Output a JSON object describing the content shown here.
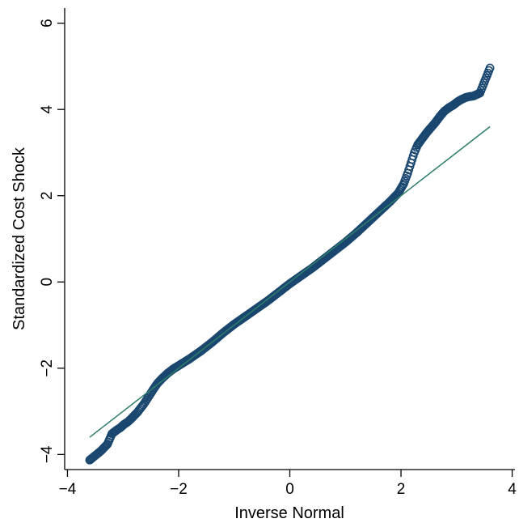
{
  "chart_data": {
    "type": "scatter",
    "title": "",
    "xlabel": "Inverse Normal",
    "ylabel": "Standardized Cost Shock",
    "xlim": [
      -4.05,
      4.05
    ],
    "ylim": [
      -4.35,
      6.35
    ],
    "x_ticks": [
      -4,
      -2,
      0,
      2,
      4
    ],
    "y_ticks": [
      -4,
      -2,
      0,
      2,
      4,
      6
    ],
    "x_tick_labels": [
      "−4",
      "−2",
      "0",
      "2",
      "4"
    ],
    "y_tick_labels": [
      "−4",
      "−2",
      "0",
      "2",
      "4",
      "6"
    ],
    "grid": false,
    "legend": "none",
    "marker": "hollow-circle",
    "colors": {
      "points": "#1a476f",
      "reference_line": "#2e7d6b"
    },
    "reference_line": {
      "from": [
        -3.6,
        -3.6
      ],
      "to": [
        3.6,
        3.6
      ]
    },
    "series": [
      {
        "values": [
          [
            -3.6,
            -4.13
          ],
          [
            -3.4,
            -3.92
          ],
          [
            -3.28,
            -3.76
          ],
          [
            -3.2,
            -3.52
          ],
          [
            -3.12,
            -3.44
          ],
          [
            -3.05,
            -3.38
          ],
          [
            -2.98,
            -3.3
          ],
          [
            -2.92,
            -3.25
          ],
          [
            -2.86,
            -3.18
          ],
          [
            -2.8,
            -3.1
          ],
          [
            -2.74,
            -3.02
          ],
          [
            -2.68,
            -2.92
          ],
          [
            -2.62,
            -2.82
          ],
          [
            -2.56,
            -2.7
          ],
          [
            -2.5,
            -2.58
          ],
          [
            -2.44,
            -2.46
          ],
          [
            -2.38,
            -2.35
          ],
          [
            -2.3,
            -2.24
          ],
          [
            -2.2,
            -2.12
          ],
          [
            -2.1,
            -2.02
          ],
          [
            -2.0,
            -1.94
          ],
          [
            -1.8,
            -1.78
          ],
          [
            -1.6,
            -1.6
          ],
          [
            -1.4,
            -1.4
          ],
          [
            -1.2,
            -1.18
          ],
          [
            -1.0,
            -0.98
          ],
          [
            -0.8,
            -0.8
          ],
          [
            -0.6,
            -0.62
          ],
          [
            -0.4,
            -0.44
          ],
          [
            -0.2,
            -0.24
          ],
          [
            0.0,
            -0.04
          ],
          [
            0.2,
            0.14
          ],
          [
            0.4,
            0.32
          ],
          [
            0.6,
            0.52
          ],
          [
            0.8,
            0.72
          ],
          [
            1.0,
            0.92
          ],
          [
            1.2,
            1.14
          ],
          [
            1.4,
            1.38
          ],
          [
            1.6,
            1.62
          ],
          [
            1.8,
            1.86
          ],
          [
            1.95,
            2.06
          ],
          [
            2.05,
            2.28
          ],
          [
            2.12,
            2.52
          ],
          [
            2.18,
            2.76
          ],
          [
            2.24,
            3.0
          ],
          [
            2.3,
            3.18
          ],
          [
            2.38,
            3.32
          ],
          [
            2.46,
            3.46
          ],
          [
            2.54,
            3.58
          ],
          [
            2.62,
            3.7
          ],
          [
            2.7,
            3.84
          ],
          [
            2.78,
            3.96
          ],
          [
            2.86,
            4.04
          ],
          [
            2.94,
            4.1
          ],
          [
            3.02,
            4.18
          ],
          [
            3.1,
            4.24
          ],
          [
            3.17,
            4.28
          ],
          [
            3.24,
            4.3
          ],
          [
            3.3,
            4.31
          ],
          [
            3.42,
            4.38
          ],
          [
            3.6,
            4.96
          ]
        ]
      }
    ]
  }
}
